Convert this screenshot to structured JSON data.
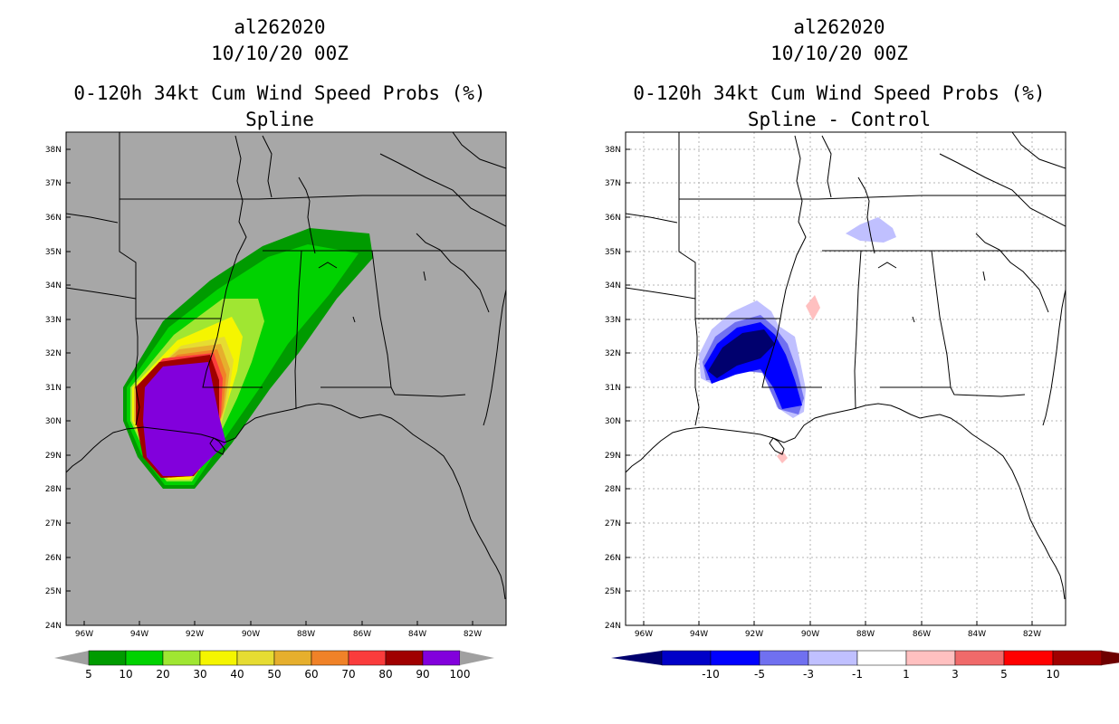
{
  "left_panel": {
    "storm_id": "al262020",
    "datetime": "10/10/20 00Z",
    "product": "0-120h 34kt Cum Wind Speed Probs (%)",
    "subtitle": "Spline",
    "colorbar": {
      "labels": [
        "5",
        "10",
        "20",
        "30",
        "40",
        "50",
        "60",
        "70",
        "80",
        "90",
        "100"
      ],
      "colors": [
        "#009b00",
        "#00d200",
        "#a0e632",
        "#f5f500",
        "#e6dc32",
        "#e6af2d",
        "#f08228",
        "#fa3c3c",
        "#a00000",
        "#8200dc"
      ],
      "end_color": "#a0a0a0"
    },
    "field_colors": {
      "background": "#a7a7a7",
      "p5": "#009b00",
      "p10": "#00d200",
      "p20": "#a0e632",
      "p30": "#f5f500",
      "p40": "#e6dc32",
      "p50": "#e6af2d",
      "p60": "#f08228",
      "p70": "#fa3c3c",
      "p80": "#a00000",
      "p90": "#8200dc"
    }
  },
  "right_panel": {
    "storm_id": "al262020",
    "datetime": "10/10/20 00Z",
    "product": "0-120h 34kt Cum Wind Speed Probs (%)",
    "subtitle": "Spline - Control",
    "colorbar": {
      "labels": [
        "-10",
        "-5",
        "-3",
        "-1",
        "1",
        "3",
        "5",
        "10"
      ],
      "colors": [
        "#0000c8",
        "#0000ff",
        "#7070f0",
        "#c0c0ff",
        "#ffffff",
        "#ffc0c0",
        "#f06a6a",
        "#ff0000",
        "#a00000"
      ],
      "left_end_color": "#00006e",
      "right_end_color": "#6e0000"
    },
    "field_colors": {
      "background": "#ffffff",
      "lt_minus1": "#c0c0ff",
      "lt_minus3": "#7070f0",
      "lt_minus5": "#0000ff",
      "lt_minus10": "#00006e",
      "gt_1": "#ffc0c0"
    }
  },
  "axes": {
    "lat_labels": [
      "38N",
      "37N",
      "36N",
      "35N",
      "34N",
      "33N",
      "32N",
      "31N",
      "30N",
      "29N",
      "28N",
      "27N",
      "26N",
      "25N",
      "24N"
    ],
    "lon_labels": [
      "96W",
      "94W",
      "92W",
      "90W",
      "88W",
      "86W",
      "84W",
      "82W"
    ]
  }
}
